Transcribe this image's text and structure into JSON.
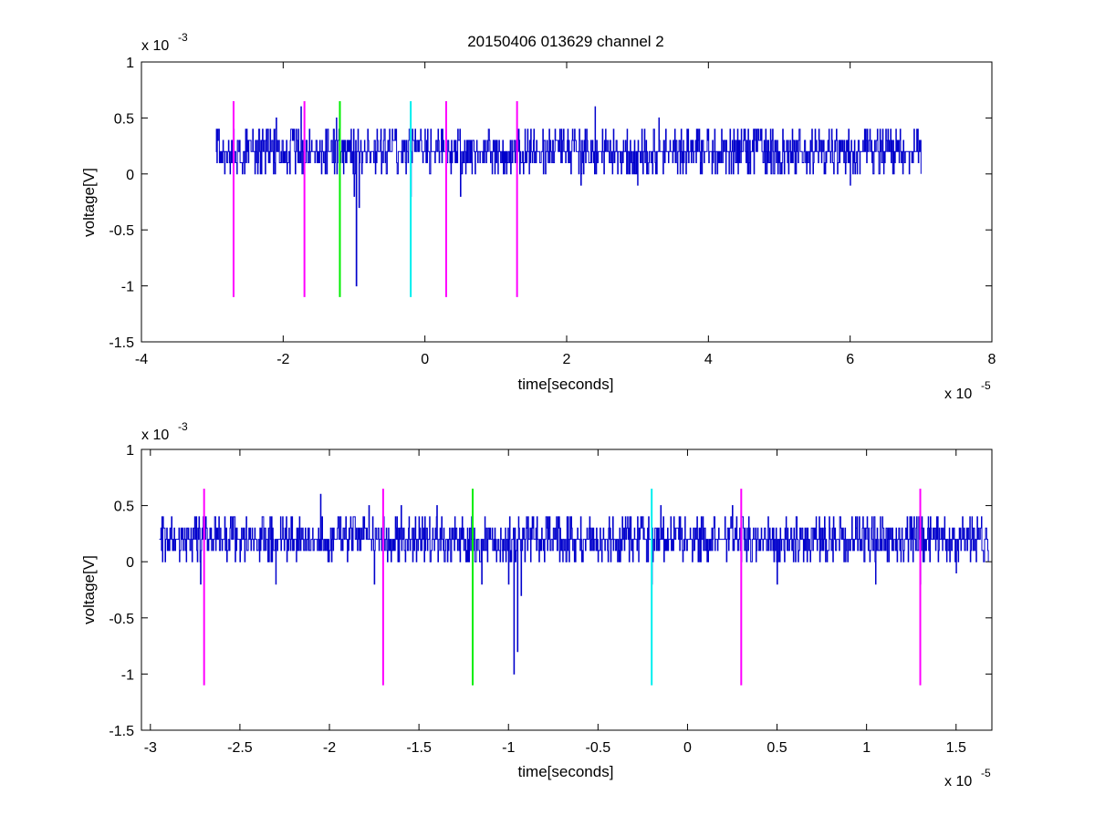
{
  "figure": {
    "background": "#ffffff"
  },
  "chart_data": [
    {
      "type": "line",
      "title": "20150406 013629 channel 2",
      "xlabel": "time[seconds]",
      "ylabel": "voltage[V]",
      "x_multiplier": "x 10",
      "x_exponent": "-5",
      "y_multiplier": "x 10",
      "y_exponent": "-3",
      "xlim": [
        -4,
        8
      ],
      "ylim": [
        -1.5,
        1
      ],
      "x_ticks": [
        -4,
        -2,
        0,
        2,
        4,
        6,
        8
      ],
      "x_tick_labels": [
        "-4",
        "-2",
        "0",
        "2",
        "4",
        "6",
        "8"
      ],
      "y_ticks": [
        -1.5,
        -1,
        -0.5,
        0,
        0.5,
        1
      ],
      "y_tick_labels": [
        "-1.5",
        "-1",
        "-0.5",
        "0",
        "0.5",
        "1"
      ],
      "grid": false,
      "series": [
        {
          "color": "#0000cc",
          "points": [
            [
              -2.95,
              0.2
            ],
            [
              -2.9,
              0.1
            ],
            [
              -2.85,
              0.3
            ],
            [
              -2.75,
              0.0
            ],
            [
              -2.7,
              0.4
            ],
            [
              -2.6,
              0.1
            ],
            [
              -2.5,
              0.3
            ],
            [
              -2.4,
              0.0
            ],
            [
              -2.3,
              0.3
            ],
            [
              -2.2,
              0.2
            ],
            [
              -2.1,
              0.5
            ],
            [
              -2.0,
              0.1
            ],
            [
              -1.9,
              0.3
            ],
            [
              -1.8,
              0.2
            ],
            [
              -1.75,
              0.6
            ],
            [
              -1.7,
              0.1
            ],
            [
              -1.6,
              0.3
            ],
            [
              -1.5,
              0.2
            ],
            [
              -1.4,
              0.4
            ],
            [
              -1.3,
              0.1
            ],
            [
              -1.25,
              0.5
            ],
            [
              -1.2,
              0.2
            ],
            [
              -1.15,
              0.0
            ],
            [
              -1.1,
              0.3
            ],
            [
              -1.05,
              0.1
            ],
            [
              -1.0,
              -0.2
            ],
            [
              -0.97,
              -1.0
            ],
            [
              -0.93,
              -0.3
            ],
            [
              -0.9,
              0.2
            ],
            [
              -0.8,
              0.3
            ],
            [
              -0.7,
              0.0
            ],
            [
              -0.6,
              0.2
            ],
            [
              -0.5,
              0.4
            ],
            [
              -0.4,
              0.1
            ],
            [
              -0.3,
              0.3
            ],
            [
              -0.2,
              -0.2
            ],
            [
              -0.1,
              0.2
            ],
            [
              0.0,
              0.4
            ],
            [
              0.2,
              0.1
            ],
            [
              0.3,
              0.4
            ],
            [
              0.5,
              -0.2
            ],
            [
              0.7,
              0.2
            ],
            [
              1.0,
              0.3
            ],
            [
              1.3,
              0.1
            ],
            [
              1.5,
              0.2
            ],
            [
              1.7,
              0.0
            ],
            [
              2.0,
              0.2
            ],
            [
              2.2,
              -0.1
            ],
            [
              2.4,
              0.6
            ],
            [
              2.6,
              0.1
            ],
            [
              2.8,
              0.3
            ],
            [
              3.0,
              -0.1
            ],
            [
              3.3,
              0.5
            ],
            [
              3.6,
              0.0
            ],
            [
              3.9,
              0.3
            ],
            [
              4.2,
              0.1
            ],
            [
              4.5,
              0.4
            ],
            [
              4.8,
              0.0
            ],
            [
              5.1,
              0.3
            ],
            [
              5.4,
              0.1
            ],
            [
              5.7,
              0.4
            ],
            [
              6.0,
              -0.1
            ],
            [
              6.3,
              0.3
            ],
            [
              6.6,
              0.0
            ],
            [
              6.9,
              0.4
            ],
            [
              7.0,
              0.0
            ]
          ],
          "noise_lo": -0.1,
          "noise_hi": 0.4
        }
      ],
      "markers": [
        {
          "x": -2.7,
          "color": "#ff00ff",
          "ymin": -1.1,
          "ymax": 0.65
        },
        {
          "x": -1.7,
          "color": "#ff00ff",
          "ymin": -1.1,
          "ymax": 0.65
        },
        {
          "x": -1.2,
          "color": "#00ee00",
          "ymin": -1.1,
          "ymax": 0.65
        },
        {
          "x": -0.2,
          "color": "#00eeee",
          "ymin": -1.1,
          "ymax": 0.65
        },
        {
          "x": 0.3,
          "color": "#ff00ff",
          "ymin": -1.1,
          "ymax": 0.65
        },
        {
          "x": 1.3,
          "color": "#ff00ff",
          "ymin": -1.1,
          "ymax": 0.65
        }
      ]
    },
    {
      "type": "line",
      "xlabel": "time[seconds]",
      "ylabel": "voltage[V]",
      "x_multiplier": "x 10",
      "x_exponent": "-5",
      "y_multiplier": "x 10",
      "y_exponent": "-3",
      "xlim": [
        -3.05,
        1.7
      ],
      "ylim": [
        -1.5,
        1
      ],
      "x_ticks": [
        -3,
        -2.5,
        -2,
        -1.5,
        -1,
        -0.5,
        0,
        0.5,
        1,
        1.5
      ],
      "x_tick_labels": [
        "-3",
        "-2.5",
        "-2",
        "-1.5",
        "-1",
        "-0.5",
        "0",
        "0.5",
        "1",
        "1.5"
      ],
      "y_ticks": [
        -1.5,
        -1,
        -0.5,
        0,
        0.5,
        1
      ],
      "y_tick_labels": [
        "-1.5",
        "-1",
        "-0.5",
        "0",
        "0.5",
        "1"
      ],
      "grid": false,
      "series": [
        {
          "color": "#0000cc",
          "points": [
            [
              -2.95,
              0.2
            ],
            [
              -2.93,
              0.4
            ],
            [
              -2.9,
              0.1
            ],
            [
              -2.85,
              0.2
            ],
            [
              -2.8,
              0.0
            ],
            [
              -2.75,
              0.3
            ],
            [
              -2.72,
              -0.2
            ],
            [
              -2.7,
              0.4
            ],
            [
              -2.6,
              0.1
            ],
            [
              -2.55,
              0.4
            ],
            [
              -2.5,
              0.0
            ],
            [
              -2.45,
              0.3
            ],
            [
              -2.4,
              0.1
            ],
            [
              -2.35,
              0.2
            ],
            [
              -2.3,
              -0.2
            ],
            [
              -2.25,
              0.2
            ],
            [
              -2.2,
              0.1
            ],
            [
              -2.15,
              0.3
            ],
            [
              -2.1,
              0.2
            ],
            [
              -2.05,
              0.6
            ],
            [
              -2.0,
              0.1
            ],
            [
              -1.95,
              0.4
            ],
            [
              -1.9,
              0.0
            ],
            [
              -1.85,
              0.3
            ],
            [
              -1.78,
              0.5
            ],
            [
              -1.75,
              -0.2
            ],
            [
              -1.7,
              0.3
            ],
            [
              -1.65,
              0.2
            ],
            [
              -1.6,
              0.5
            ],
            [
              -1.55,
              0.1
            ],
            [
              -1.5,
              0.4
            ],
            [
              -1.45,
              0.2
            ],
            [
              -1.4,
              0.5
            ],
            [
              -1.35,
              0.2
            ],
            [
              -1.3,
              0.4
            ],
            [
              -1.25,
              0.1
            ],
            [
              -1.2,
              0.2
            ],
            [
              -1.15,
              -0.2
            ],
            [
              -1.1,
              0.2
            ],
            [
              -1.05,
              0.1
            ],
            [
              -1.0,
              -0.2
            ],
            [
              -0.97,
              -1.0
            ],
            [
              -0.95,
              -0.8
            ],
            [
              -0.93,
              -0.3
            ],
            [
              -0.9,
              0.4
            ],
            [
              -0.85,
              0.2
            ],
            [
              -0.8,
              0.0
            ],
            [
              -0.75,
              0.3
            ],
            [
              -0.7,
              0.1
            ],
            [
              -0.65,
              0.4
            ],
            [
              -0.6,
              0.1
            ],
            [
              -0.55,
              0.3
            ],
            [
              -0.5,
              0.0
            ],
            [
              -0.45,
              0.2
            ],
            [
              -0.4,
              0.1
            ],
            [
              -0.35,
              0.3
            ],
            [
              -0.3,
              0.2
            ],
            [
              -0.25,
              0.4
            ],
            [
              -0.2,
              -0.2
            ],
            [
              -0.15,
              0.5
            ],
            [
              -0.1,
              0.2
            ],
            [
              -0.05,
              0.2
            ],
            [
              0.0,
              0.2
            ],
            [
              0.05,
              0.3
            ],
            [
              0.1,
              0.1
            ],
            [
              0.15,
              0.4
            ],
            [
              0.2,
              0.2
            ],
            [
              0.25,
              0.5
            ],
            [
              0.3,
              0.0
            ],
            [
              0.35,
              0.2
            ],
            [
              0.4,
              0.1
            ],
            [
              0.45,
              0.4
            ],
            [
              0.5,
              -0.2
            ],
            [
              0.55,
              0.4
            ],
            [
              0.6,
              0.2
            ],
            [
              0.65,
              0.2
            ],
            [
              0.7,
              0.1
            ],
            [
              0.75,
              0.3
            ],
            [
              0.8,
              0.2
            ],
            [
              0.85,
              0.4
            ],
            [
              0.9,
              0.2
            ],
            [
              0.95,
              0.1
            ],
            [
              1.0,
              0.3
            ],
            [
              1.05,
              -0.2
            ],
            [
              1.1,
              0.2
            ],
            [
              1.15,
              0.1
            ],
            [
              1.2,
              0.2
            ],
            [
              1.25,
              0.4
            ],
            [
              1.3,
              -0.2
            ],
            [
              1.35,
              0.3
            ],
            [
              1.4,
              0.0
            ],
            [
              1.45,
              0.2
            ],
            [
              1.5,
              -0.1
            ],
            [
              1.55,
              0.1
            ],
            [
              1.6,
              0.3
            ],
            [
              1.65,
              0.1
            ],
            [
              1.68,
              0.0
            ]
          ],
          "noise_lo": -0.1,
          "noise_hi": 0.4
        }
      ],
      "markers": [
        {
          "x": -2.7,
          "color": "#ff00ff",
          "ymin": -1.1,
          "ymax": 0.65
        },
        {
          "x": -1.7,
          "color": "#ff00ff",
          "ymin": -1.1,
          "ymax": 0.65
        },
        {
          "x": -1.2,
          "color": "#00ee00",
          "ymin": -1.1,
          "ymax": 0.65
        },
        {
          "x": -0.2,
          "color": "#00eeee",
          "ymin": -1.1,
          "ymax": 0.65
        },
        {
          "x": 0.3,
          "color": "#ff00ff",
          "ymin": -1.1,
          "ymax": 0.65
        },
        {
          "x": 1.3,
          "color": "#ff00ff",
          "ymin": -1.1,
          "ymax": 0.65
        }
      ]
    }
  ]
}
